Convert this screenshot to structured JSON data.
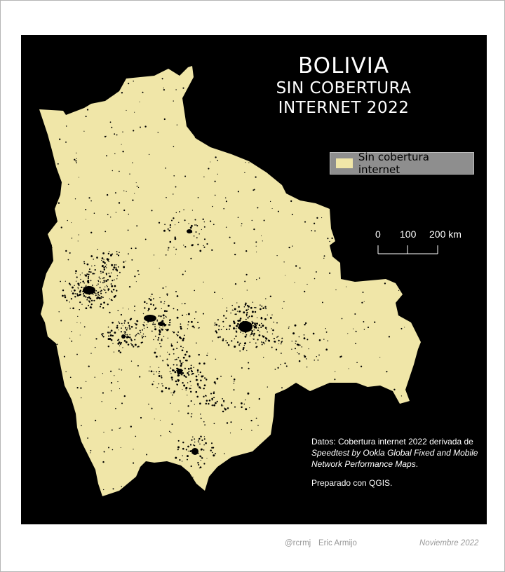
{
  "map": {
    "title": "BOLIVIA",
    "subtitle_line1": "SIN COBERTURA",
    "subtitle_line2": "INTERNET 2022",
    "legend": {
      "label": "Sin cobertura internet",
      "swatch_color": "#f0e6a8"
    },
    "colors": {
      "background": "#000000",
      "land": "#f0e6a8",
      "covered_area": "#000000"
    },
    "scale": {
      "labels": [
        "0",
        "100",
        "200 km"
      ]
    },
    "credits": {
      "prefix": "Datos: Cobertura internet 2022 derivada de",
      "source_italic": "Speedtest by Ookla Global Fixed and Mobile Network Performance Maps",
      "suffix": ".",
      "prepared": "Preparado con QGIS."
    }
  },
  "footer": {
    "handle": "@rcrmj",
    "author": "Eric Armijo",
    "date": "Noviembre 2022"
  }
}
